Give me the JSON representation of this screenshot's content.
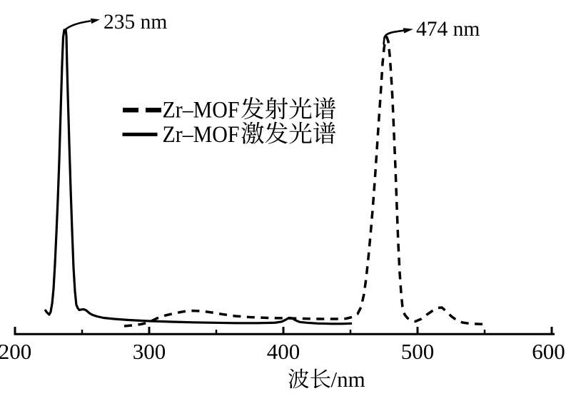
{
  "figure": {
    "kind": "fluorescence excitation and emission spectra line chart",
    "background_color": "#ffffff",
    "ink_color": "#000000"
  },
  "annotations": {
    "excitation_peak": {
      "text": "235 nm"
    },
    "emission_peak": {
      "text": "474 nm"
    }
  },
  "legend": {
    "items": [
      {
        "label": "Zr–MOF发射光谱",
        "latin": "Zr–MOF",
        "cjk": "发射光谱",
        "line_style": "dashed"
      },
      {
        "label": "Zr–MOF激发光谱",
        "latin": "Zr–MOF",
        "cjk": "激发光谱",
        "line_style": "solid"
      }
    ]
  },
  "x_axis": {
    "label": "波长/nm",
    "label_cjk": "波长",
    "label_suffix": "/nm",
    "tick_labels": [
      "200",
      "300",
      "400",
      "500",
      "600"
    ]
  },
  "chart_data": {
    "type": "line",
    "title": "",
    "xlabel": "波长/nm",
    "ylabel": "",
    "xlim": [
      200,
      600
    ],
    "ylim": [
      0,
      1.08
    ],
    "x_ticks": [
      200,
      300,
      400,
      500,
      600
    ],
    "x_minor_ticks": [
      250,
      350,
      450,
      550
    ],
    "grid": false,
    "legend_position": "inset upper left",
    "series": [
      {
        "name": "Zr–MOF发射光谱",
        "style": "dashed",
        "peak_nm": 474,
        "points": [
          [
            281.4,
            -0.0048
          ],
          [
            287.2,
            -0.0024
          ],
          [
            293.6,
            0.0012
          ],
          [
            299.5,
            0.0073
          ],
          [
            305.9,
            0.0218
          ],
          [
            312.2,
            0.0315
          ],
          [
            319.1,
            0.0387
          ],
          [
            326.1,
            0.0448
          ],
          [
            332.4,
            0.0472
          ],
          [
            339.4,
            0.046
          ],
          [
            346.8,
            0.0412
          ],
          [
            354.8,
            0.0351
          ],
          [
            364.4,
            0.0291
          ],
          [
            375.0,
            0.0254
          ],
          [
            388.3,
            0.023
          ],
          [
            401.6,
            0.0218
          ],
          [
            414.9,
            0.0206
          ],
          [
            428.2,
            0.0194
          ],
          [
            438.8,
            0.0194
          ],
          [
            446.8,
            0.0206
          ],
          [
            452.1,
            0.0266
          ],
          [
            455.3,
            0.0363
          ],
          [
            458.0,
            0.0605
          ],
          [
            460.1,
            0.1041
          ],
          [
            461.7,
            0.1574
          ],
          [
            463.3,
            0.2252
          ],
          [
            464.9,
            0.3027
          ],
          [
            466.5,
            0.3874
          ],
          [
            468.1,
            0.4843
          ],
          [
            469.7,
            0.5932
          ],
          [
            471.3,
            0.7022
          ],
          [
            472.9,
            0.8111
          ],
          [
            473.9,
            0.8838
          ],
          [
            475.0,
            0.937
          ],
          [
            476.1,
            0.9685
          ],
          [
            477.1,
            0.9758
          ],
          [
            478.2,
            0.9613
          ],
          [
            479.3,
            0.9128
          ],
          [
            480.3,
            0.8475
          ],
          [
            481.4,
            0.7627
          ],
          [
            482.4,
            0.6538
          ],
          [
            483.5,
            0.5327
          ],
          [
            484.6,
            0.3995
          ],
          [
            485.6,
            0.2785
          ],
          [
            486.7,
            0.1768
          ],
          [
            487.8,
            0.1041
          ],
          [
            488.8,
            0.0605
          ],
          [
            490.4,
            0.0339
          ],
          [
            492.6,
            0.0218
          ],
          [
            495.2,
            0.0145
          ],
          [
            498.4,
            0.0109
          ],
          [
            502.7,
            0.0194
          ],
          [
            506.9,
            0.0339
          ],
          [
            511.2,
            0.0472
          ],
          [
            514.9,
            0.0569
          ],
          [
            518.1,
            0.0581
          ],
          [
            521.3,
            0.046
          ],
          [
            525.0,
            0.0291
          ],
          [
            529.3,
            0.0145
          ],
          [
            533.5,
            0.0073
          ],
          [
            538.8,
            0.0036
          ],
          [
            544.1,
            0.0024
          ],
          [
            550.5,
            0.0012
          ]
        ]
      },
      {
        "name": "Zr–MOF激发光谱",
        "style": "solid",
        "peak_nm": 235,
        "points": [
          [
            222.3,
            0.0508
          ],
          [
            223.9,
            0.0412
          ],
          [
            225.5,
            0.0339
          ],
          [
            226.6,
            0.0436
          ],
          [
            227.7,
            0.0726
          ],
          [
            228.7,
            0.1211
          ],
          [
            229.8,
            0.2058
          ],
          [
            230.9,
            0.3148
          ],
          [
            231.9,
            0.4237
          ],
          [
            233.0,
            0.5569
          ],
          [
            234.0,
            0.7143
          ],
          [
            235.1,
            0.8838
          ],
          [
            235.9,
            0.9758
          ],
          [
            236.7,
            1.0
          ],
          [
            237.8,
            1.0
          ],
          [
            238.3,
            0.9806
          ],
          [
            238.8,
            0.8838
          ],
          [
            239.4,
            0.7748
          ],
          [
            240.4,
            0.6174
          ],
          [
            241.5,
            0.46
          ],
          [
            242.6,
            0.3148
          ],
          [
            243.6,
            0.1937
          ],
          [
            244.7,
            0.1138
          ],
          [
            245.7,
            0.0678
          ],
          [
            246.8,
            0.0557
          ],
          [
            247.9,
            0.0496
          ],
          [
            249.5,
            0.0513
          ],
          [
            251.1,
            0.0521
          ],
          [
            252.7,
            0.0496
          ],
          [
            254.3,
            0.0436
          ],
          [
            255.9,
            0.0375
          ],
          [
            258.0,
            0.0327
          ],
          [
            261.2,
            0.0278
          ],
          [
            266.0,
            0.023
          ],
          [
            273.9,
            0.0194
          ],
          [
            284.6,
            0.0157
          ],
          [
            300.5,
            0.0121
          ],
          [
            316.5,
            0.0097
          ],
          [
            332.4,
            0.0077
          ],
          [
            348.4,
            0.0065
          ],
          [
            364.4,
            0.0053
          ],
          [
            380.3,
            0.0053
          ],
          [
            393.6,
            0.0065
          ],
          [
            398.9,
            0.0102
          ],
          [
            402.1,
            0.0174
          ],
          [
            404.3,
            0.0235
          ],
          [
            406.4,
            0.0223
          ],
          [
            409.0,
            0.015
          ],
          [
            412.2,
            0.009
          ],
          [
            417.6,
            0.0065
          ],
          [
            425.5,
            0.0041
          ],
          [
            436.2,
            0.0029
          ],
          [
            444.1,
            0.0029
          ],
          [
            451.1,
            0.0041
          ]
        ]
      }
    ],
    "annotations": [
      {
        "text": "235 nm",
        "x": 235,
        "y": 1.0
      },
      {
        "text": "474 nm",
        "x": 474,
        "y": 0.976
      }
    ]
  }
}
